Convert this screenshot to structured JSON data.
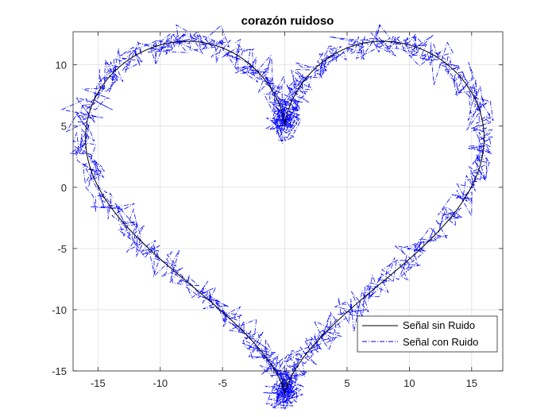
{
  "chart_data": {
    "type": "line",
    "title": "corazón ruidoso",
    "xlabel": "",
    "ylabel": "",
    "xlim": [
      -17,
      17.5
    ],
    "ylim": [
      -15,
      12.7
    ],
    "xticks": [
      -15,
      -10,
      -5,
      0,
      5,
      10,
      15
    ],
    "yticks": [
      -15,
      -10,
      -5,
      0,
      5,
      10
    ],
    "xtick_labels": [
      "-15",
      "-10",
      "-5",
      "0",
      "5",
      "10",
      "15"
    ],
    "ytick_labels": [
      "-15",
      "-10",
      "-5",
      "0",
      "5",
      "10"
    ],
    "grid": true,
    "legend_position": "bottom-right",
    "curve": {
      "x_formula": "16*sin(t)^3",
      "y_formula": "13*cos(t) - 5*cos(2t) - 2*cos(3t) - cos(4t)",
      "t_range": [
        0,
        6.2832
      ]
    },
    "series": [
      {
        "name": "Señal sin Ruido",
        "style": "solid",
        "color": "#000000",
        "noise_amplitude": 0
      },
      {
        "name": "Señal con Ruido",
        "style": "dashdot",
        "color": "#0000ff",
        "noise_amplitude": 0.6
      }
    ]
  }
}
